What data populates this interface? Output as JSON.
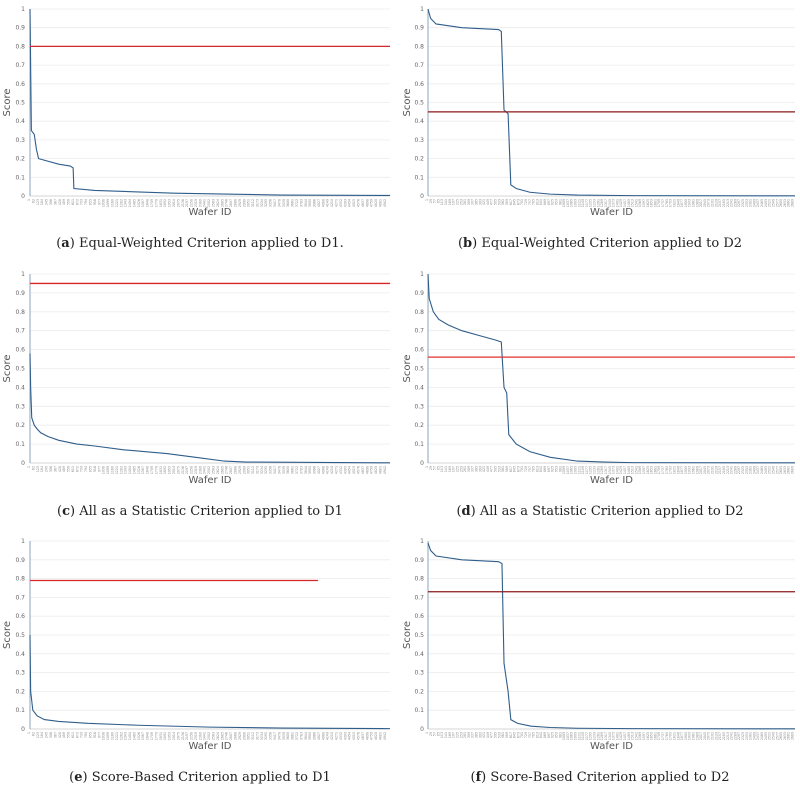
{
  "chart_data": [
    {
      "type": "line",
      "id": "a",
      "tag": "a",
      "caption": "Equal-Weighted Criterion applied to D1.",
      "xlabel": "Wafer ID",
      "ylabel": "Score",
      "ylim": [
        0,
        1
      ],
      "yticks": [
        "0",
        "0.1",
        "0.2",
        "0.3",
        "0.4",
        "0.5",
        "0.6",
        "0.7",
        "0.8",
        "0.9",
        "1"
      ],
      "n": 5000,
      "x_tick_step": 61,
      "threshold": 0.8,
      "line_color": "#2f5d8a",
      "threshold_color": "#d62728",
      "curve": [
        [
          1,
          1.0
        ],
        [
          20,
          0.35
        ],
        [
          60,
          0.33
        ],
        [
          90,
          0.25
        ],
        [
          120,
          0.2
        ],
        [
          400,
          0.17
        ],
        [
          560,
          0.16
        ],
        [
          600,
          0.15
        ],
        [
          610,
          0.04
        ],
        [
          900,
          0.03
        ],
        [
          2000,
          0.015
        ],
        [
          3500,
          0.005
        ],
        [
          5000,
          0.003
        ]
      ]
    },
    {
      "type": "line",
      "id": "b",
      "tag": "b",
      "caption": "Equal-Weighted Criterion applied to D2",
      "xlabel": "Wafer ID",
      "ylabel": "Score",
      "ylim": [
        0,
        1
      ],
      "yticks": [
        "0",
        "0.1",
        "0.2",
        "0.3",
        "0.4",
        "0.5",
        "0.6",
        "0.7",
        "0.8",
        "0.9",
        "1"
      ],
      "n": 2700,
      "x_tick_step": 28,
      "threshold": 0.45,
      "line_color": "#2f5d8a",
      "threshold_color": "#8b1a1a",
      "curve": [
        [
          1,
          1.0
        ],
        [
          20,
          0.95
        ],
        [
          60,
          0.92
        ],
        [
          250,
          0.9
        ],
        [
          520,
          0.89
        ],
        [
          540,
          0.88
        ],
        [
          560,
          0.46
        ],
        [
          590,
          0.44
        ],
        [
          610,
          0.06
        ],
        [
          650,
          0.04
        ],
        [
          750,
          0.02
        ],
        [
          900,
          0.01
        ],
        [
          1100,
          0.005
        ],
        [
          1500,
          0.002
        ],
        [
          2700,
          0.001
        ]
      ]
    },
    {
      "type": "line",
      "id": "c",
      "tag": "c",
      "caption": "All as a Statistic Criterion applied to D1",
      "xlabel": "Wafer ID",
      "ylabel": "Score",
      "ylim": [
        0,
        1
      ],
      "yticks": [
        "0",
        "0.1",
        "0.2",
        "0.3",
        "0.4",
        "0.5",
        "0.6",
        "0.7",
        "0.8",
        "0.9",
        "1"
      ],
      "n": 5000,
      "x_tick_step": 61,
      "threshold": 0.95,
      "line_color": "#2f5d8a",
      "threshold_color": "#d62728",
      "curve": [
        [
          1,
          0.58
        ],
        [
          10,
          0.4
        ],
        [
          25,
          0.24
        ],
        [
          60,
          0.2
        ],
        [
          100,
          0.18
        ],
        [
          150,
          0.16
        ],
        [
          250,
          0.14
        ],
        [
          400,
          0.12
        ],
        [
          650,
          0.1
        ],
        [
          900,
          0.09
        ],
        [
          1300,
          0.07
        ],
        [
          1900,
          0.05
        ],
        [
          2300,
          0.03
        ],
        [
          2700,
          0.01
        ],
        [
          3000,
          0.005
        ],
        [
          5000,
          0.001
        ]
      ]
    },
    {
      "type": "line",
      "id": "d",
      "tag": "d",
      "caption": "All as a Statistic Criterion applied to D2",
      "xlabel": "Wafer ID",
      "ylabel": "Score",
      "ylim": [
        0,
        1
      ],
      "yticks": [
        "0",
        "0.1",
        "0.2",
        "0.3",
        "0.4",
        "0.5",
        "0.6",
        "0.7",
        "0.8",
        "0.9",
        "1"
      ],
      "n": 2700,
      "x_tick_step": 28,
      "threshold": 0.56,
      "line_color": "#2f5d8a",
      "threshold_color": "#e03030",
      "curve": [
        [
          1,
          1.0
        ],
        [
          10,
          0.87
        ],
        [
          40,
          0.8
        ],
        [
          80,
          0.76
        ],
        [
          150,
          0.73
        ],
        [
          250,
          0.7
        ],
        [
          400,
          0.67
        ],
        [
          500,
          0.65
        ],
        [
          540,
          0.64
        ],
        [
          560,
          0.4
        ],
        [
          580,
          0.37
        ],
        [
          595,
          0.15
        ],
        [
          650,
          0.1
        ],
        [
          750,
          0.06
        ],
        [
          900,
          0.03
        ],
        [
          1100,
          0.01
        ],
        [
          1300,
          0.005
        ],
        [
          1500,
          0.002
        ],
        [
          2700,
          0.001
        ]
      ]
    },
    {
      "type": "line",
      "id": "e",
      "tag": "e",
      "caption": "Score-Based Criterion applied to D1",
      "xlabel": "Wafer ID",
      "ylabel": "Score",
      "ylim": [
        0,
        1
      ],
      "yticks": [
        "0",
        "0.1",
        "0.2",
        "0.3",
        "0.4",
        "0.5",
        "0.6",
        "0.7",
        "0.8",
        "0.9",
        "1"
      ],
      "n": 5000,
      "x_tick_step": 61,
      "threshold": 0.79,
      "threshold_until": 4000,
      "line_color": "#2f5d8a",
      "threshold_color": "#d62728",
      "curve": [
        [
          1,
          0.5
        ],
        [
          10,
          0.2
        ],
        [
          40,
          0.1
        ],
        [
          100,
          0.07
        ],
        [
          200,
          0.05
        ],
        [
          400,
          0.04
        ],
        [
          800,
          0.03
        ],
        [
          1500,
          0.02
        ],
        [
          2500,
          0.01
        ],
        [
          3500,
          0.005
        ],
        [
          5000,
          0.002
        ]
      ]
    },
    {
      "type": "line",
      "id": "f",
      "tag": "f",
      "caption": "Score-Based Criterion applied to D2",
      "xlabel": "Wafer ID",
      "ylabel": "Score",
      "ylim": [
        0,
        1
      ],
      "yticks": [
        "0",
        "0.1",
        "0.2",
        "0.3",
        "0.4",
        "0.5",
        "0.6",
        "0.7",
        "0.8",
        "0.9",
        "1"
      ],
      "n": 2700,
      "x_tick_step": 28,
      "threshold": 0.73,
      "line_color": "#2f5d8a",
      "threshold_color": "#8b1a1a",
      "curve": [
        [
          1,
          0.99
        ],
        [
          20,
          0.95
        ],
        [
          60,
          0.92
        ],
        [
          250,
          0.9
        ],
        [
          520,
          0.89
        ],
        [
          545,
          0.88
        ],
        [
          560,
          0.35
        ],
        [
          590,
          0.2
        ],
        [
          610,
          0.05
        ],
        [
          660,
          0.03
        ],
        [
          760,
          0.015
        ],
        [
          900,
          0.008
        ],
        [
          1100,
          0.004
        ],
        [
          1500,
          0.002
        ],
        [
          2700,
          0.001
        ]
      ]
    }
  ]
}
